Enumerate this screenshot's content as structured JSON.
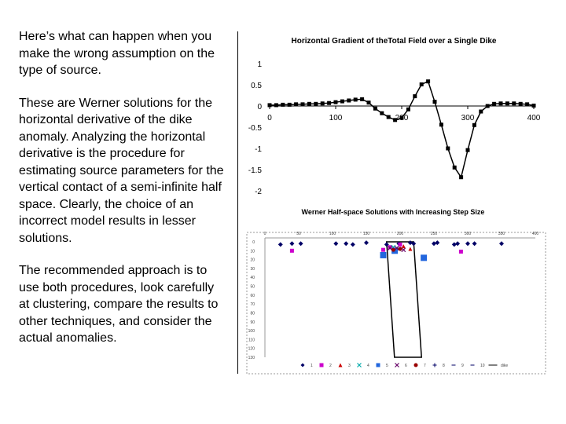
{
  "text": {
    "p1": "Here’s what can happen when you make the wrong assumption on the type of source.",
    "p2": "These are Werner solutions for the horizontal derivative of the dike anomaly. Analyzing the horizontal derivative is the procedure for estimating source parameters for the vertical contact of a semi-infinite half space. Clearly, the choice of an incorrect model results in lesser solutions.",
    "p3": "The recommended approach is to use both procedures, look carefully at clustering, compare the results to other techniques, and consider the actual anomalies."
  },
  "chart_data": [
    {
      "type": "line",
      "title": "Horizontal Gradient of theTotal Field over a Single Dike",
      "xlabel": "",
      "ylabel": "",
      "xlim": [
        0,
        400
      ],
      "ylim": [
        -2,
        1
      ],
      "x_ticks": [
        "0",
        "100",
        "200",
        "300",
        "400"
      ],
      "y_ticks": [
        "1",
        "0.5",
        "0",
        "-0.5",
        "-1",
        "-1.5",
        "-2"
      ],
      "series": [
        {
          "color": "#000000",
          "marker": "square",
          "x": [
            0,
            10,
            20,
            30,
            40,
            50,
            60,
            70,
            80,
            90,
            100,
            110,
            120,
            130,
            140,
            150,
            160,
            170,
            180,
            190,
            200,
            210,
            220,
            230,
            240,
            250,
            260,
            270,
            280,
            290,
            300,
            310,
            320,
            330,
            340,
            350,
            360,
            370,
            380,
            390,
            400
          ],
          "y": [
            0.02,
            0.02,
            0.03,
            0.03,
            0.04,
            0.04,
            0.05,
            0.05,
            0.06,
            0.07,
            0.09,
            0.11,
            0.13,
            0.15,
            0.16,
            0.08,
            -0.06,
            -0.17,
            -0.26,
            -0.33,
            -0.28,
            -0.08,
            0.23,
            0.51,
            0.58,
            0.1,
            -0.44,
            -1.0,
            -1.45,
            -1.68,
            -1.04,
            -0.45,
            -0.13,
            0.0,
            0.05,
            0.06,
            0.06,
            0.06,
            0.05,
            0.04,
            0.01
          ]
        }
      ]
    },
    {
      "type": "scatter",
      "title": "Werner Half-space Solutions with Increasing Step Size",
      "xlim": [
        0,
        400
      ],
      "ylim": [
        0,
        130
      ],
      "x_ticks": [
        "0",
        "50",
        "100",
        "150",
        "200",
        "250",
        "300",
        "350",
        "400"
      ],
      "y_ticks": [
        "0",
        "10",
        "20",
        "30",
        "40",
        "50",
        "60",
        "70",
        "80",
        "90",
        "100",
        "110",
        "120",
        "130"
      ],
      "legend_position": "bottom",
      "legend": [
        "1",
        "2",
        "3",
        "4",
        "5",
        "6",
        "7",
        "8",
        "9",
        "10",
        "dike"
      ],
      "legend_colors": [
        "#000066",
        "#cc00cc",
        "#cc0000",
        "#00aaaa",
        "#2266dd",
        "#660066",
        "#990000",
        "#000066",
        "#000066",
        "#000066",
        "#000000"
      ],
      "legend_markers": [
        "diamond",
        "square",
        "triangle",
        "x",
        "square",
        "x",
        "circle",
        "plus",
        "dash",
        "dash",
        "line"
      ],
      "series": [
        {
          "name": "1",
          "marker": "diamond",
          "color": "#000066",
          "x": [
            23,
            40,
            53,
            105,
            120,
            130,
            150,
            180,
            198,
            215,
            220,
            250,
            255,
            280,
            285,
            300,
            310,
            350
          ],
          "y": [
            3,
            2,
            2,
            2,
            2,
            3,
            1,
            3,
            2,
            1,
            2,
            2,
            1,
            3,
            2,
            2,
            2,
            2
          ]
        },
        {
          "name": "2",
          "marker": "square",
          "color": "#cc00cc",
          "x": [
            40,
            175,
            185,
            200,
            290
          ],
          "y": [
            10,
            9,
            6,
            3,
            11
          ]
        },
        {
          "name": "3",
          "marker": "triangle",
          "color": "#cc0000",
          "x": [
            205,
            215
          ],
          "y": [
            5,
            8
          ]
        },
        {
          "name": "4",
          "marker": "x",
          "color": "#00aaaa",
          "x": [
            190,
            198
          ],
          "y": [
            6,
            8
          ]
        },
        {
          "name": "5",
          "marker": "square",
          "color": "#2266dd",
          "x": [
            175,
            192,
            235
          ],
          "y": [
            15,
            10,
            18
          ]
        },
        {
          "name": "6",
          "marker": "x",
          "color": "#660066",
          "x": [
            185,
            195,
            205
          ],
          "y": [
            7,
            7,
            9
          ]
        },
        {
          "name": "7",
          "marker": "circle",
          "color": "#990000",
          "x": [
            190,
            200
          ],
          "y": [
            9,
            8
          ]
        },
        {
          "name": "dike",
          "type": "polygon",
          "color": "#000000",
          "x": [
            180,
            220,
            220,
            180
          ],
          "y": [
            0,
            0,
            130,
            130
          ]
        }
      ]
    }
  ]
}
